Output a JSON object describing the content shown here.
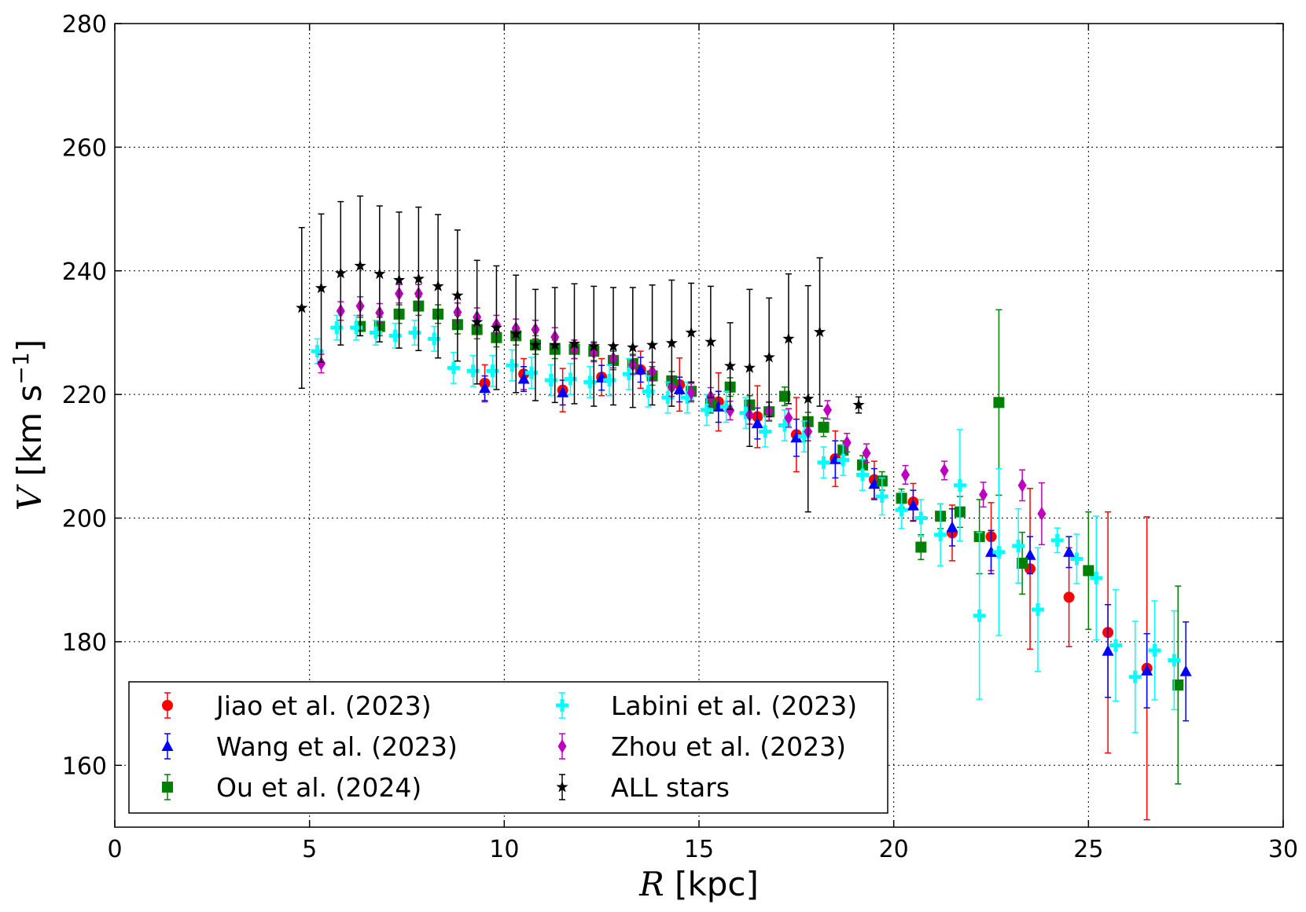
{
  "chart_data": {
    "type": "scatter",
    "xlabel_parts": [
      "R",
      " [kpc]"
    ],
    "ylabel_parts": [
      "V",
      " [km s",
      "−1",
      "]"
    ],
    "xlim": [
      0,
      30
    ],
    "ylim": [
      150,
      280
    ],
    "xticks": [
      0,
      5,
      10,
      15,
      20,
      25,
      30
    ],
    "yticks": [
      160,
      180,
      200,
      220,
      240,
      260,
      280
    ],
    "grid": true,
    "legend": "lower left",
    "legend_columns": 2,
    "series": [
      {
        "name": "Jiao et al. (2023)",
        "color": "#ff0000",
        "marker": "circle",
        "x": [
          9.5,
          10.5,
          11.5,
          12.5,
          13.5,
          14.5,
          15.5,
          16.5,
          17.5,
          18.5,
          19.5,
          20.5,
          21.5,
          22.5,
          23.5,
          24.5,
          25.5,
          26.5
        ],
        "values": [
          221.8,
          223.3,
          220.7,
          222.8,
          224,
          221.6,
          218.8,
          216.4,
          213.5,
          209.6,
          206.2,
          202.6,
          197.6,
          197,
          191.8,
          187.2,
          181.5,
          175.7
        ],
        "errors": [
          3,
          2.5,
          3.5,
          3,
          3,
          4.3,
          4.7,
          5,
          6,
          4.5,
          3,
          3,
          4.5,
          5.5,
          13,
          8,
          19.5,
          24.5
        ]
      },
      {
        "name": "Wang et al. (2023)",
        "color": "#0000ff",
        "marker": "triangle",
        "x": [
          9.5,
          10.5,
          11.5,
          12.5,
          13.5,
          14.5,
          15.5,
          16.5,
          17.5,
          18.5,
          19.5,
          20.5,
          21.5,
          22.5,
          23.5,
          24.5,
          25.5,
          26.5,
          27.5
        ],
        "values": [
          221,
          222.5,
          220.3,
          222.7,
          224,
          220.8,
          218,
          215.3,
          213,
          209.5,
          205.5,
          202,
          198.5,
          194.5,
          194,
          194.5,
          178.5,
          175.3,
          175.2
        ],
        "errors": [
          2,
          2,
          2,
          2,
          2,
          2,
          2.5,
          2.5,
          3,
          3,
          2.5,
          2.5,
          3,
          3.5,
          3,
          2.5,
          7.5,
          6,
          8
        ]
      },
      {
        "name": "Ou et al. (2024)",
        "color": "#008000",
        "marker": "square",
        "x": [
          6.3,
          6.8,
          7.3,
          7.8,
          8.3,
          8.8,
          9.3,
          9.8,
          10.3,
          10.8,
          11.3,
          11.8,
          12.3,
          12.8,
          13.3,
          13.8,
          14.3,
          14.8,
          15.3,
          15.8,
          16.3,
          16.8,
          17.2,
          17.8,
          18.2,
          18.7,
          19.2,
          19.7,
          20.2,
          20.7,
          21.2,
          21.7,
          22.2,
          22.7,
          23.3,
          25.0,
          27.3
        ],
        "values": [
          231,
          231,
          233,
          234.3,
          233,
          231.3,
          230.5,
          229.2,
          229.5,
          228,
          227.3,
          227.3,
          227,
          225.5,
          225,
          223,
          222.2,
          220.5,
          218.5,
          221.2,
          218.3,
          217.2,
          219.7,
          215.6,
          214.7,
          211,
          208.6,
          206,
          203.2,
          195.3,
          200.3,
          201,
          197,
          218.7,
          192.7,
          191.5,
          173
        ],
        "errors": [
          1.5,
          1.5,
          1.5,
          1.5,
          1.5,
          1.5,
          1.5,
          1.5,
          1.5,
          1.5,
          1.5,
          1.5,
          1.5,
          1.5,
          1.5,
          1.5,
          1.5,
          1.5,
          1.5,
          1.5,
          1.5,
          1.5,
          1.5,
          1.5,
          1.5,
          1.5,
          1.5,
          1.5,
          1.5,
          2,
          2,
          2.5,
          6,
          15,
          5,
          9.5,
          16
        ]
      },
      {
        "name": "Labini et al. (2023)",
        "color": "#00ffff",
        "marker": "plus",
        "x": [
          5.2,
          5.7,
          6.2,
          6.7,
          7.2,
          7.7,
          8.2,
          8.7,
          9.2,
          9.7,
          10.2,
          10.7,
          11.2,
          11.7,
          12.2,
          12.7,
          13.2,
          13.7,
          14.2,
          14.7,
          15.2,
          15.7,
          16.2,
          16.7,
          17.2,
          17.7,
          18.2,
          18.7,
          19.2,
          19.7,
          20.2,
          20.7,
          21.2,
          21.7,
          22.2,
          22.7,
          23.2,
          23.7,
          24.2,
          24.7,
          25.2,
          25.7,
          26.2,
          26.7,
          27.2
        ],
        "values": [
          227,
          230.8,
          230.8,
          230,
          229.5,
          230,
          229,
          224.3,
          223.8,
          223.8,
          224.7,
          223.5,
          222.3,
          222.5,
          222,
          222.3,
          223.3,
          220.5,
          219.5,
          219.5,
          217.5,
          218,
          217,
          214,
          215,
          213.2,
          209,
          209.4,
          207,
          203.5,
          201.3,
          200,
          197.3,
          205.3,
          184.2,
          194.5,
          195.5,
          185.2,
          196.4,
          193.4,
          190.3,
          179.4,
          174.3,
          178.6,
          177
        ],
        "errors": [
          2,
          2,
          2,
          2,
          2,
          2,
          2,
          2.5,
          2.5,
          2.5,
          2.5,
          2.5,
          2.5,
          2.5,
          2.5,
          2.5,
          2.5,
          2.5,
          2.5,
          2.5,
          2.5,
          2.5,
          2.5,
          2.5,
          2.5,
          2.5,
          2.5,
          2.5,
          2.5,
          3,
          3,
          3,
          5,
          9,
          13.5,
          13.5,
          6,
          10,
          2,
          4,
          10,
          9,
          9,
          8,
          8
        ]
      },
      {
        "name": "Zhou et al. (2023)",
        "color": "#bf00bf",
        "marker": "diamond",
        "x": [
          5.3,
          5.8,
          6.3,
          6.8,
          7.3,
          7.8,
          8.8,
          9.3,
          9.8,
          10.3,
          10.8,
          11.3,
          11.8,
          12.3,
          12.8,
          13.3,
          13.8,
          14.3,
          14.8,
          15.3,
          15.8,
          16.3,
          16.8,
          17.3,
          17.8,
          18.3,
          18.8,
          19.3,
          20.3,
          21.3,
          22.3,
          23.3,
          23.8
        ],
        "values": [
          225,
          233.5,
          234.3,
          233.2,
          236.3,
          236.3,
          233.3,
          232.5,
          231.3,
          230.7,
          230.5,
          229.3,
          227.3,
          226.8,
          225.8,
          224.8,
          223.7,
          221.2,
          220.3,
          219.6,
          217.4,
          216.7,
          217.3,
          216.2,
          214,
          217.5,
          212.2,
          210.5,
          207,
          207.7,
          203.8,
          205.3,
          200.7
        ],
        "errors": [
          1.5,
          1.5,
          1.5,
          1.5,
          1.5,
          1.5,
          1.5,
          1.5,
          1.5,
          1.5,
          1.5,
          1.5,
          1.5,
          1.5,
          1.5,
          1.5,
          1.5,
          1.5,
          1.5,
          1.5,
          1.5,
          1.5,
          1.5,
          1.5,
          1.5,
          1.5,
          1.5,
          1.5,
          1.5,
          1.5,
          2,
          2.5,
          5
        ]
      },
      {
        "name": "ALL stars",
        "color": "#000000",
        "marker": "star",
        "x": [
          4.8,
          5.3,
          5.8,
          6.3,
          6.8,
          7.3,
          7.8,
          8.3,
          8.8,
          9.3,
          9.8,
          10.3,
          10.8,
          11.3,
          11.8,
          12.3,
          12.8,
          13.3,
          13.8,
          14.3,
          14.8,
          15.3,
          15.8,
          16.3,
          16.8,
          17.3,
          17.8,
          18.1,
          19.1
        ],
        "values": [
          234,
          237.2,
          239.6,
          240.8,
          239.5,
          238.5,
          238.7,
          237.5,
          236,
          231.7,
          230.8,
          229.8,
          228,
          228,
          228.2,
          227.8,
          227.8,
          227.6,
          228,
          228.3,
          230,
          228.5,
          224.6,
          224.3,
          226,
          229,
          219.3,
          230.1,
          218.3
        ],
        "errors": [
          13,
          12,
          11.6,
          11.3,
          11,
          11,
          11.6,
          11.6,
          10.6,
          10,
          10,
          9.5,
          9,
          9.3,
          9.7,
          9.7,
          9.5,
          9.7,
          9.7,
          10.2,
          8,
          9,
          7,
          12.7,
          9.6,
          10.5,
          18.3,
          12,
          1.3
        ]
      }
    ]
  }
}
